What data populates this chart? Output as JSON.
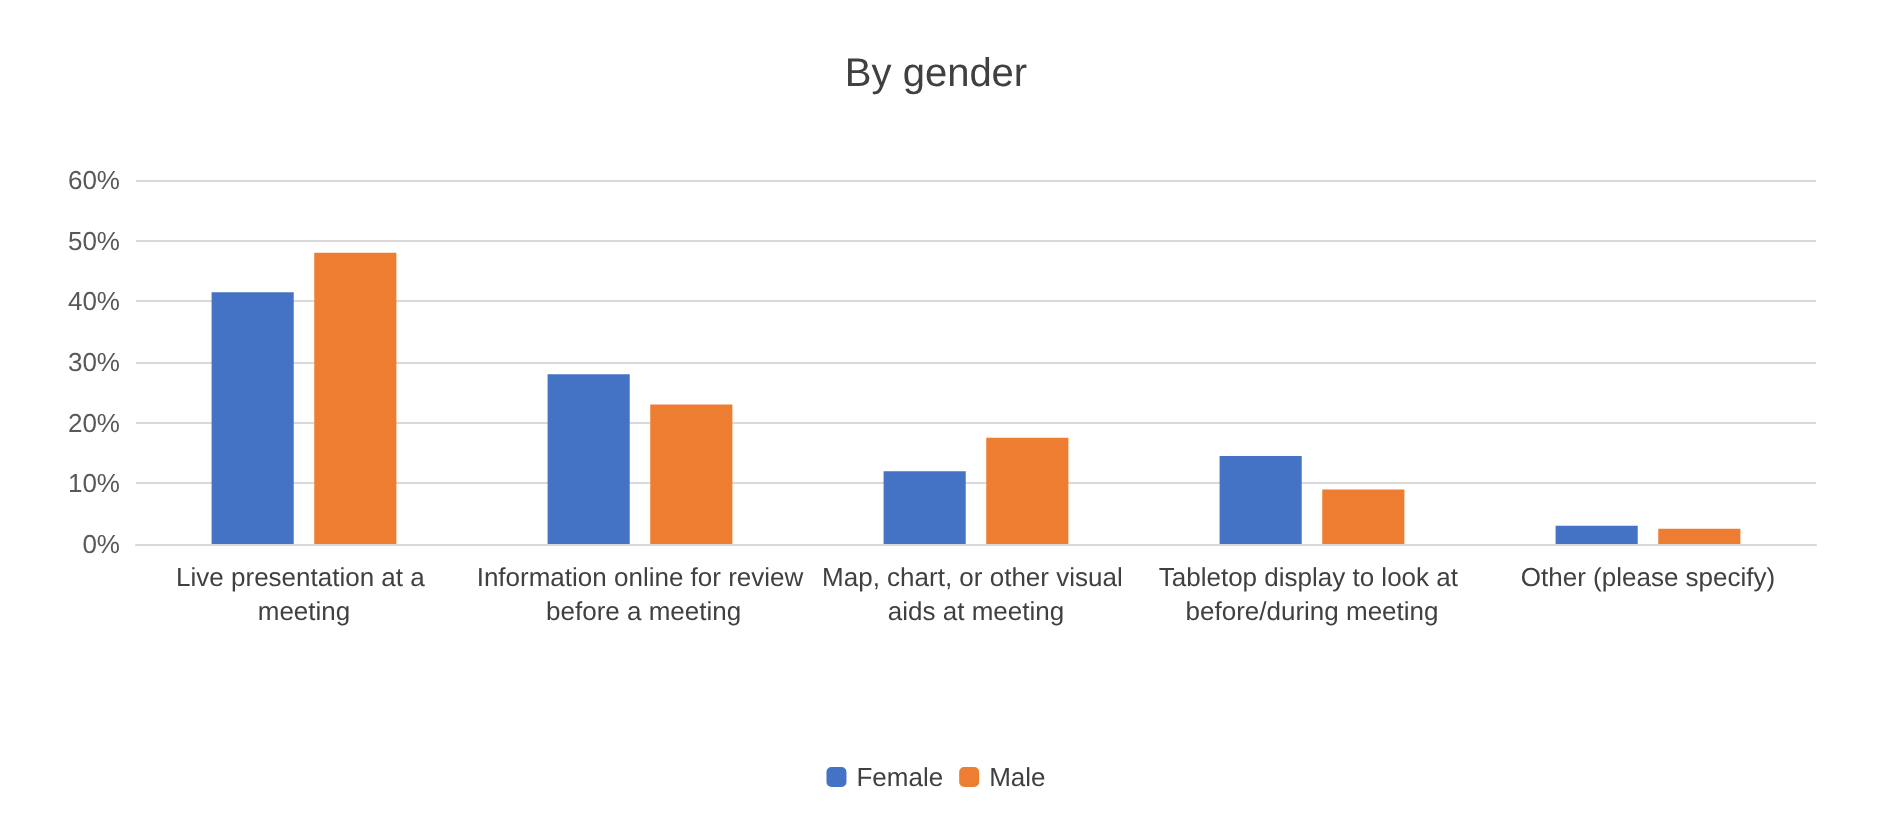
{
  "chart_data": {
    "type": "bar",
    "title": "By gender",
    "categories": [
      "Live presentation at a meeting",
      "Information online for review before a meeting",
      "Map, chart, or other visual aids at meeting",
      "Tabletop display to look at before/during meeting",
      "Other (please specify)"
    ],
    "series": [
      {
        "name": "Female",
        "color": "#4472c4",
        "values": [
          41.5,
          28,
          12,
          14.5,
          3
        ]
      },
      {
        "name": "Male",
        "color": "#ed7d31",
        "values": [
          48,
          23,
          17.5,
          9,
          2.5
        ]
      }
    ],
    "ylim": [
      0,
      60
    ],
    "yticks": [
      {
        "value": 0,
        "label": "0%"
      },
      {
        "value": 10,
        "label": "10%"
      },
      {
        "value": 20,
        "label": "20%"
      },
      {
        "value": 30,
        "label": "30%"
      },
      {
        "value": 40,
        "label": "40%"
      },
      {
        "value": 50,
        "label": "50%"
      },
      {
        "value": 60,
        "label": "60%"
      }
    ],
    "grid": true,
    "legend": "bottom"
  }
}
